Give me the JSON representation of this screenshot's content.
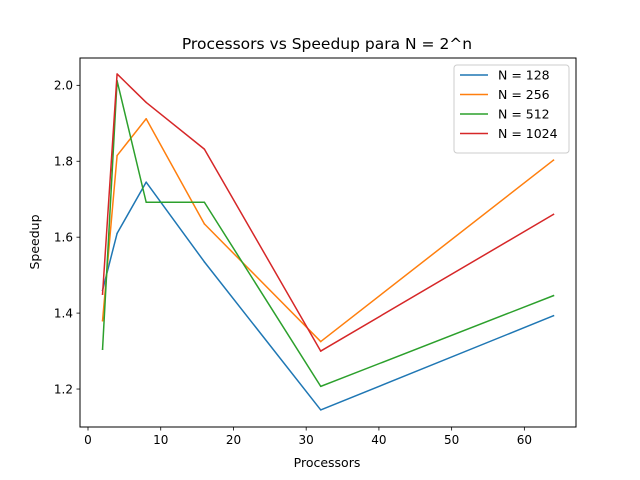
{
  "chart_data": {
    "type": "line",
    "title": "Processors vs Speedup para N = 2^n",
    "xlabel": "Processors",
    "ylabel": "Speedup",
    "xlim": [
      -1.1,
      67.1
    ],
    "ylim": [
      1.1,
      2.072
    ],
    "xticks": [
      0,
      10,
      20,
      30,
      40,
      50,
      60
    ],
    "yticks": [
      1.2,
      1.4,
      1.6,
      1.8,
      2.0
    ],
    "ytick_labels": [
      "1.2",
      "1.4",
      "1.6",
      "1.8",
      "2.0"
    ],
    "grid": false,
    "legend_position": "top-right",
    "x": [
      2,
      4,
      8,
      16,
      32,
      64
    ],
    "series": [
      {
        "name": "N = 128",
        "color": "#1f77b4",
        "values": [
          1.46,
          1.61,
          1.745,
          1.535,
          1.145,
          1.393
        ]
      },
      {
        "name": "N = 256",
        "color": "#ff7f0e",
        "values": [
          1.38,
          1.815,
          1.912,
          1.635,
          1.325,
          1.803
        ]
      },
      {
        "name": "N = 512",
        "color": "#2ca02c",
        "values": [
          1.305,
          2.012,
          1.692,
          1.692,
          1.207,
          1.446
        ]
      },
      {
        "name": "N = 1024",
        "color": "#d62728",
        "values": [
          1.45,
          2.03,
          1.955,
          1.832,
          1.3,
          1.66
        ]
      }
    ]
  }
}
